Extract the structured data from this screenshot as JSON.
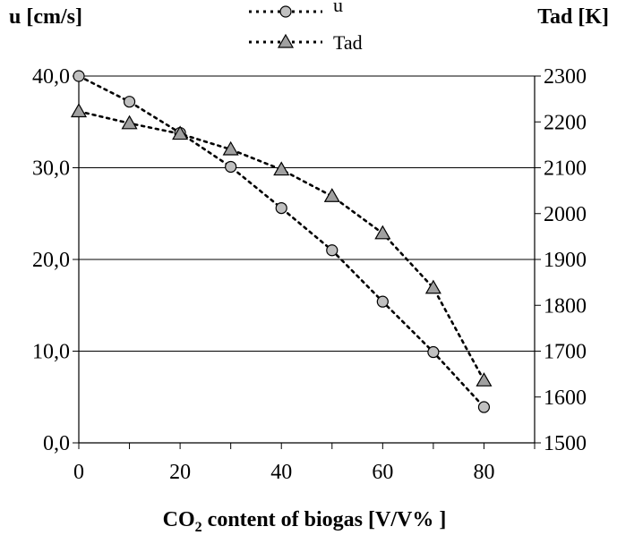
{
  "chart_data": {
    "type": "line",
    "xlabel": "CO2 content of biogas [V/V% ]",
    "ylabel_left": "u [cm/s]",
    "ylabel_right": "Tad [K]",
    "xlim": [
      0,
      90
    ],
    "ylim_left": [
      0,
      40
    ],
    "ylim_right": [
      1500,
      2300
    ],
    "x_ticks": [
      "0",
      "20",
      "40",
      "60",
      "80"
    ],
    "left_ticks": [
      "0,0",
      "10,0",
      "20,0",
      "30,0",
      "40,0"
    ],
    "right_ticks": [
      "1500",
      "1600",
      "1700",
      "1800",
      "1900",
      "2000",
      "2100",
      "2200",
      "2300"
    ],
    "grid": "horizontal",
    "legend": "top-center",
    "series": [
      {
        "name": "u",
        "axis": "left",
        "marker": "circle",
        "line_style": "dotted",
        "color": "#c0c0c0",
        "x": [
          0,
          10,
          20,
          30,
          40,
          50,
          60,
          70,
          80
        ],
        "values": [
          40.0,
          37.2,
          33.8,
          30.1,
          25.6,
          21.0,
          15.4,
          9.9,
          3.9
        ]
      },
      {
        "name": "Tad",
        "axis": "right",
        "marker": "triangle",
        "line_style": "dotted",
        "color": "#a0a0a0",
        "x": [
          0,
          10,
          20,
          30,
          40,
          50,
          60,
          70,
          80
        ],
        "values": [
          2223,
          2197,
          2174,
          2140,
          2096,
          2038,
          1957,
          1838,
          1636
        ]
      }
    ]
  }
}
